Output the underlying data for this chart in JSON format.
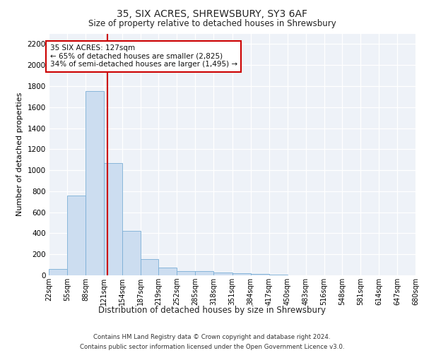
{
  "title": "35, SIX ACRES, SHREWSBURY, SY3 6AF",
  "subtitle": "Size of property relative to detached houses in Shrewsbury",
  "xlabel": "Distribution of detached houses by size in Shrewsbury",
  "ylabel": "Number of detached properties",
  "footer_line1": "Contains HM Land Registry data © Crown copyright and database right 2024.",
  "footer_line2": "Contains public sector information licensed under the Open Government Licence v3.0.",
  "property_size": 127,
  "property_label": "35 SIX ACRES: 127sqm",
  "annotation_line1": "← 65% of detached houses are smaller (2,825)",
  "annotation_line2": "34% of semi-detached houses are larger (1,495) →",
  "bar_color": "#ccddf0",
  "bar_edge_color": "#7aaed6",
  "line_color": "#cc0000",
  "annotation_box_color": "#cc0000",
  "bin_edges": [
    22,
    55,
    88,
    121,
    154,
    187,
    219,
    252,
    285,
    318,
    351,
    384,
    417,
    450,
    483,
    516,
    548,
    581,
    614,
    647,
    680
  ],
  "bar_heights": [
    60,
    760,
    1750,
    1070,
    420,
    155,
    75,
    40,
    40,
    25,
    20,
    15,
    10,
    0,
    0,
    0,
    0,
    0,
    0,
    0
  ],
  "ylim": [
    0,
    2300
  ],
  "yticks": [
    0,
    200,
    400,
    600,
    800,
    1000,
    1200,
    1400,
    1600,
    1800,
    2000,
    2200
  ],
  "background_color": "#ffffff",
  "plot_bg_color": "#eef2f8"
}
